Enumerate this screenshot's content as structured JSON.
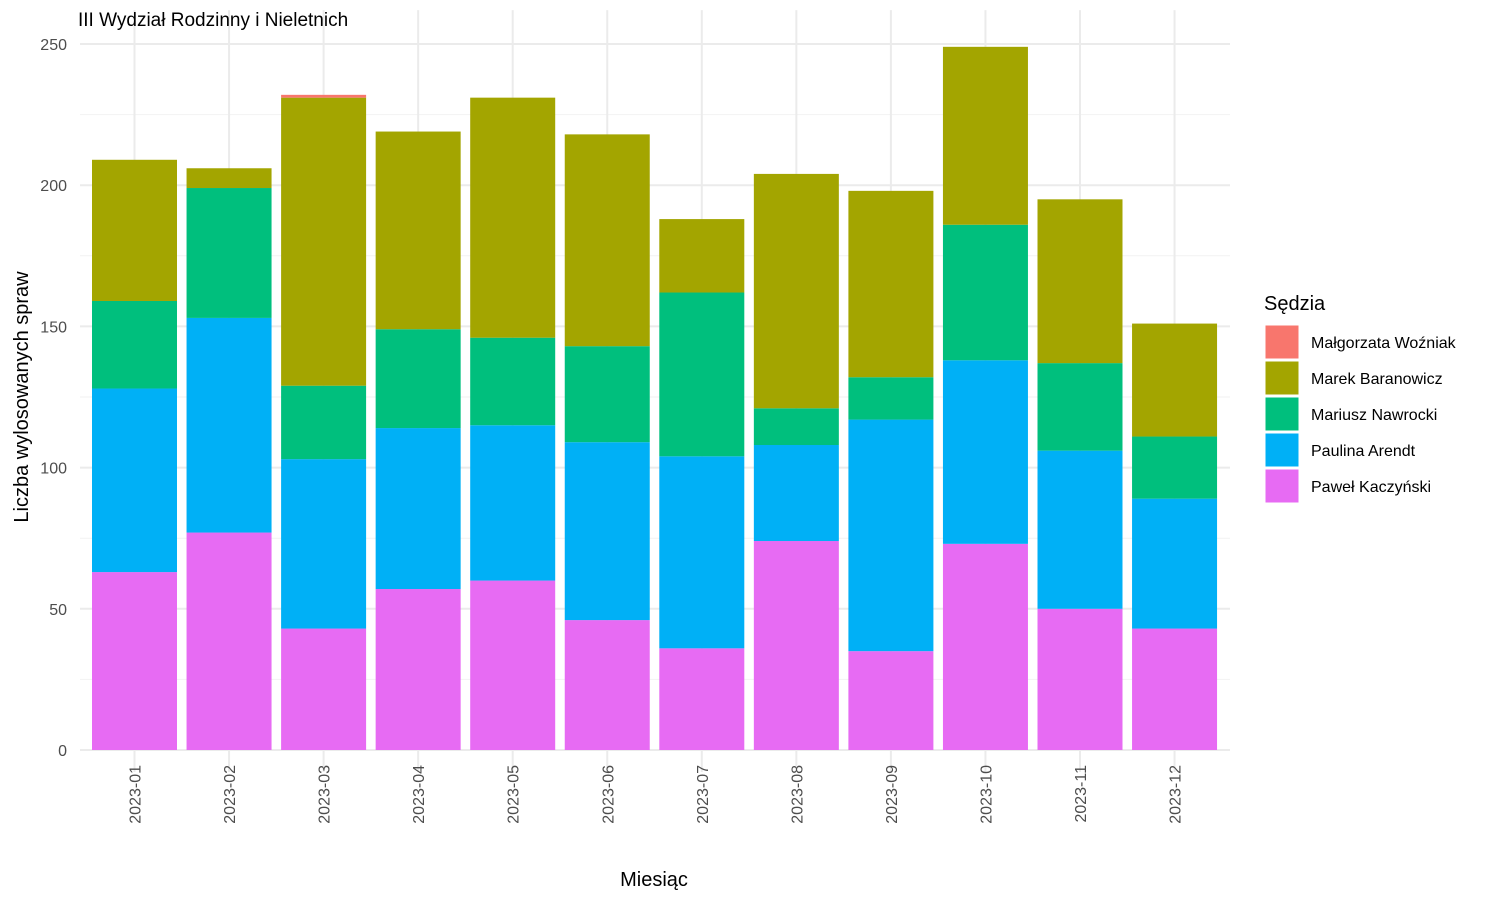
{
  "chart_data": {
    "type": "bar",
    "stacked": true,
    "title": "III Wydział Rodzinny i Nieletnich",
    "xlabel": "Miesiąc",
    "ylabel": "Liczba wylosowanych spraw",
    "ylim": [
      0,
      262
    ],
    "yticks": [
      0,
      50,
      100,
      150,
      200,
      250
    ],
    "grid": true,
    "legend": {
      "title": "Sędzia",
      "position": "right"
    },
    "categories": [
      "2023-01",
      "2023-02",
      "2023-03",
      "2023-04",
      "2023-05",
      "2023-06",
      "2023-07",
      "2023-08",
      "2023-09",
      "2023-10",
      "2023-11",
      "2023-12"
    ],
    "series": [
      {
        "name": "Małgorzata Woźniak",
        "color": "#F8766D",
        "values": [
          0,
          0,
          1,
          0,
          0,
          0,
          0,
          0,
          0,
          0,
          0,
          0
        ]
      },
      {
        "name": "Marek Baranowicz",
        "color": "#A3A500",
        "values": [
          50,
          7,
          102,
          70,
          85,
          75,
          26,
          83,
          66,
          63,
          58,
          40
        ]
      },
      {
        "name": "Mariusz Nawrocki",
        "color": "#00BF7D",
        "values": [
          31,
          46,
          26,
          35,
          31,
          34,
          58,
          13,
          15,
          48,
          31,
          22
        ]
      },
      {
        "name": "Paulina Arendt",
        "color": "#00B0F6",
        "values": [
          65,
          76,
          60,
          57,
          55,
          63,
          68,
          34,
          82,
          65,
          56,
          46
        ]
      },
      {
        "name": "Paweł Kaczyński",
        "color": "#E76BF3",
        "values": [
          63,
          77,
          43,
          57,
          60,
          46,
          36,
          74,
          35,
          73,
          50,
          43
        ]
      }
    ]
  }
}
